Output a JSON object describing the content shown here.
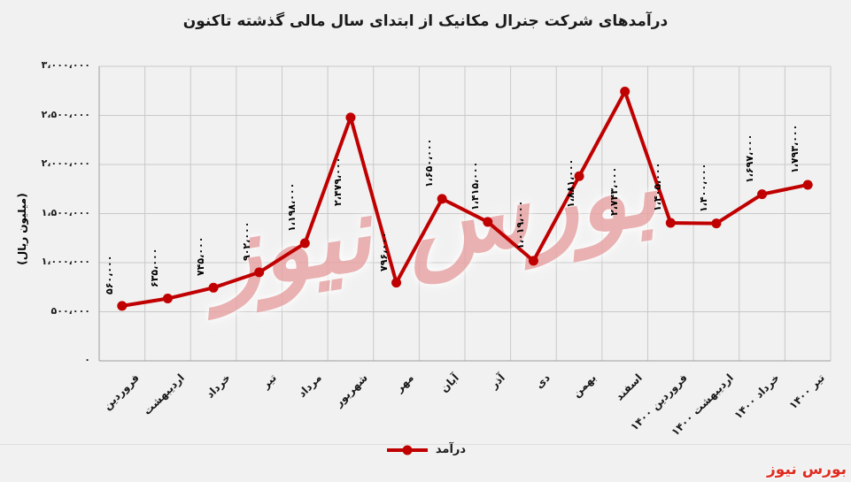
{
  "title": "درآمدهای شرکت جنرال مکانیک از ابتدای سال مالی گذشته تاکنون",
  "watermark": {
    "center": "بورس نیوز",
    "corner": "بورس نیوز"
  },
  "legend": {
    "label": "درآمد"
  },
  "colors": {
    "line": "#c00000",
    "marker": "#c00000",
    "grid": "#c9c9c9",
    "axis": "#9e9e9e",
    "background": "#f1f1f1",
    "title_text": "#1a1a1a",
    "watermark_pink": "#e8a2a2",
    "corner_logo_red": "#e02b20"
  },
  "chart_data": {
    "type": "line",
    "title": "درآمدهای شرکت جنرال مکانیک از ابتدای سال مالی گذشته تاکنون",
    "xlabel": "",
    "ylabel": "(میلیون ریال)",
    "ylim": [
      0,
      3000000
    ],
    "ytick_step": 500000,
    "yticks_fa": [
      "۰",
      "۵۰۰،۰۰۰",
      "۱،۰۰۰،۰۰۰",
      "۱،۵۰۰،۰۰۰",
      "۲،۰۰۰،۰۰۰",
      "۲،۵۰۰،۰۰۰",
      "۳،۰۰۰،۰۰۰"
    ],
    "grid": true,
    "legend_position": "bottom",
    "categories": [
      "فروردین",
      "اردیبهشت",
      "خرداد",
      "تیر",
      "مرداد",
      "شهریور",
      "مهر",
      "آبان",
      "آذر",
      "دی",
      "بهمن",
      "اسفند",
      "فروردین ۱۴۰۰",
      "اردیبهشت ۱۴۰۰",
      "خرداد ۱۴۰۰",
      "تیر ۱۴۰۰"
    ],
    "series": [
      {
        "name": "درآمد",
        "values": [
          560000,
          635000,
          745000,
          902000,
          1198000,
          2479000,
          796000,
          1650000,
          1415000,
          1019000,
          1881000,
          2743000,
          1405000,
          1400000,
          1697000,
          1793000
        ],
        "labels_fa": [
          "۵۶۰،۰۰۰",
          "۶۳۵،۰۰۰",
          "۷۴۵،۰۰۰",
          "۹۰۲،۰۰۰",
          "۱،۱۹۸،۰۰۰",
          "۲،۴۷۹،۰۰۰",
          "۷۹۶،۰۰۰",
          "۱،۶۵۰،۰۰۰",
          "۱،۴۱۵،۰۰۰",
          "۱،۰۱۹،۰۰۰",
          "۱،۸۸۱،۰۰۰",
          "۲،۷۴۳،۰۰۰",
          "۱،۴۰۵،۰۰۰",
          "۱،۴۰۰،۰۰۰",
          "۱،۶۹۷،۰۰۰",
          "۱،۷۹۳،۰۰۰"
        ]
      }
    ]
  }
}
